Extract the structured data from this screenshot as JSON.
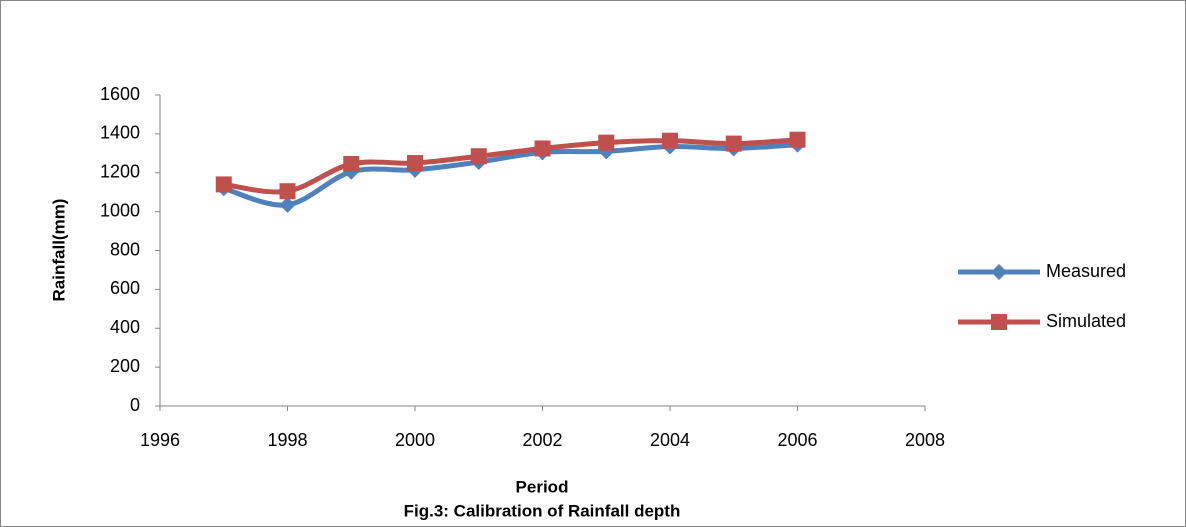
{
  "chart_data": {
    "type": "line",
    "xlabel": "Period",
    "ylabel": "Rainfall(mm)",
    "caption": "Fig.3: Calibration of Rainfall depth",
    "x": [
      1997,
      1998,
      1999,
      2000,
      2001,
      2002,
      2003,
      2004,
      2005,
      2006
    ],
    "series": [
      {
        "name": "Measured",
        "color": "#4f81bd",
        "marker": "diamond",
        "values": [
          1120,
          1035,
          1205,
          1215,
          1255,
          1305,
          1310,
          1335,
          1325,
          1345
        ]
      },
      {
        "name": "Simulated",
        "color": "#c0504d",
        "marker": "square",
        "values": [
          1140,
          1105,
          1245,
          1250,
          1285,
          1325,
          1355,
          1365,
          1350,
          1370
        ]
      }
    ],
    "xlim": [
      1996,
      2008
    ],
    "xticks": [
      1996,
      1998,
      2000,
      2002,
      2004,
      2006,
      2008
    ],
    "ylim": [
      0,
      1600
    ],
    "yticks": [
      0,
      200,
      400,
      600,
      800,
      1000,
      1200,
      1400,
      1600
    ],
    "grid": false,
    "smooth": true,
    "legend": "right"
  }
}
